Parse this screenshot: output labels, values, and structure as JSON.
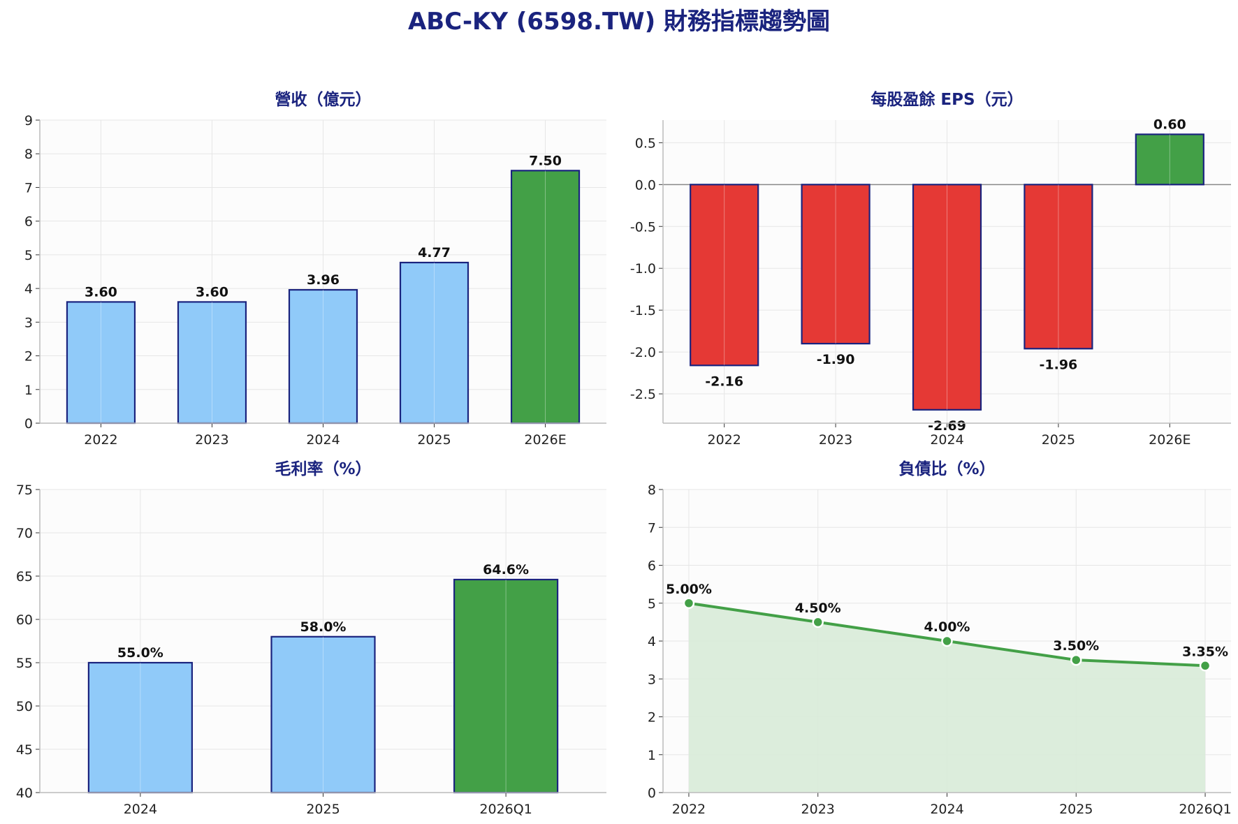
{
  "figure_title": "ABC-KY (6598.TW) 財務指標趨勢圖",
  "colors": {
    "title": "#1a237e",
    "bar_blue": "#90caf9",
    "bar_green": "#43a047",
    "bar_red": "#e53935",
    "bar_edge": "#1a237e",
    "line_green": "#43a047",
    "area_fill": "#d8ebd8",
    "plot_bg": "#fcfcfc",
    "grid": "#e6e6e6",
    "axis": "#bbbbbb"
  },
  "chart_data": [
    {
      "type": "bar",
      "title": "營收（億元）",
      "categories": [
        "2022",
        "2023",
        "2024",
        "2025",
        "2026E"
      ],
      "values": [
        3.6,
        3.6,
        3.96,
        4.77,
        7.5
      ],
      "value_labels": [
        "3.60",
        "3.60",
        "3.96",
        "4.77",
        "7.50"
      ],
      "bar_colors": [
        "blue",
        "blue",
        "blue",
        "blue",
        "green"
      ],
      "ylim": [
        0,
        9
      ],
      "yticks": [
        0,
        1,
        2,
        3,
        4,
        5,
        6,
        7,
        8,
        9
      ],
      "ytick_labels": [
        "0",
        "1",
        "2",
        "3",
        "4",
        "5",
        "6",
        "7",
        "8",
        "9"
      ],
      "grid": true
    },
    {
      "type": "bar",
      "title": "每股盈餘 EPS（元）",
      "categories": [
        "2022",
        "2023",
        "2024",
        "2025",
        "2026E"
      ],
      "values": [
        -2.16,
        -1.9,
        -2.69,
        -1.96,
        0.6
      ],
      "value_labels": [
        "-2.16",
        "-1.90",
        "-2.69",
        "-1.96",
        "0.60"
      ],
      "bar_colors": [
        "red",
        "red",
        "red",
        "red",
        "green"
      ],
      "ylim": [
        -2.85,
        0.77
      ],
      "yticks": [
        -2.5,
        -2.0,
        -1.5,
        -1.0,
        -0.5,
        0.0,
        0.5
      ],
      "ytick_labels": [
        "-2.5",
        "-2.0",
        "-1.5",
        "-1.0",
        "-0.5",
        "0.0",
        "0.5"
      ],
      "zero_line": true,
      "grid": true
    },
    {
      "type": "bar",
      "title": "毛利率（%）",
      "categories": [
        "2024",
        "2025",
        "2026Q1"
      ],
      "values": [
        55.0,
        58.0,
        64.6
      ],
      "value_labels": [
        "55.0%",
        "58.0%",
        "64.6%"
      ],
      "bar_colors": [
        "blue",
        "blue",
        "green"
      ],
      "ylim": [
        40,
        75
      ],
      "yticks": [
        40,
        45,
        50,
        55,
        60,
        65,
        70,
        75
      ],
      "ytick_labels": [
        "40",
        "45",
        "50",
        "55",
        "60",
        "65",
        "70",
        "75"
      ],
      "grid": true
    },
    {
      "type": "area",
      "title": "負債比（%）",
      "categories": [
        "2022",
        "2023",
        "2024",
        "2025",
        "2026Q1"
      ],
      "values": [
        5.0,
        4.5,
        4.0,
        3.5,
        3.35
      ],
      "value_labels": [
        "5.00%",
        "4.50%",
        "4.00%",
        "3.50%",
        "3.35%"
      ],
      "ylim": [
        0,
        8
      ],
      "yticks": [
        0,
        1,
        2,
        3,
        4,
        5,
        6,
        7,
        8
      ],
      "ytick_labels": [
        "0",
        "1",
        "2",
        "3",
        "4",
        "5",
        "6",
        "7",
        "8"
      ],
      "markers": true,
      "grid": true
    }
  ]
}
